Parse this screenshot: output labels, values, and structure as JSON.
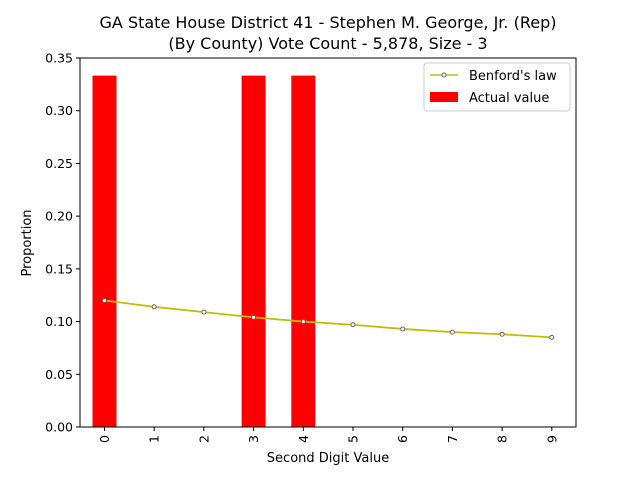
{
  "chart_data": {
    "type": "bar",
    "title_lines": [
      "GA State House District 41 - Stephen M. George, Jr. (Rep)",
      "(By County) Vote Count - 5,878, Size - 3"
    ],
    "xlabel": "Second Digit Value",
    "ylabel": "Proportion",
    "categories": [
      "0",
      "1",
      "2",
      "3",
      "4",
      "5",
      "6",
      "7",
      "8",
      "9"
    ],
    "ylim": [
      0,
      0.35
    ],
    "yticks": [
      "0.00",
      "0.05",
      "0.10",
      "0.15",
      "0.20",
      "0.25",
      "0.30",
      "0.35"
    ],
    "grid": false,
    "legend_position": "top-right",
    "series": [
      {
        "name": "Benford's law",
        "type": "line",
        "color": "#bfbf00",
        "values": [
          0.12,
          0.114,
          0.109,
          0.104,
          0.1,
          0.097,
          0.093,
          0.09,
          0.088,
          0.085
        ]
      },
      {
        "name": "Actual value",
        "type": "bar",
        "color": "#ff0000",
        "values": [
          0.3333,
          0,
          0,
          0.3333,
          0.3333,
          0,
          0,
          0,
          0,
          0
        ]
      }
    ]
  }
}
